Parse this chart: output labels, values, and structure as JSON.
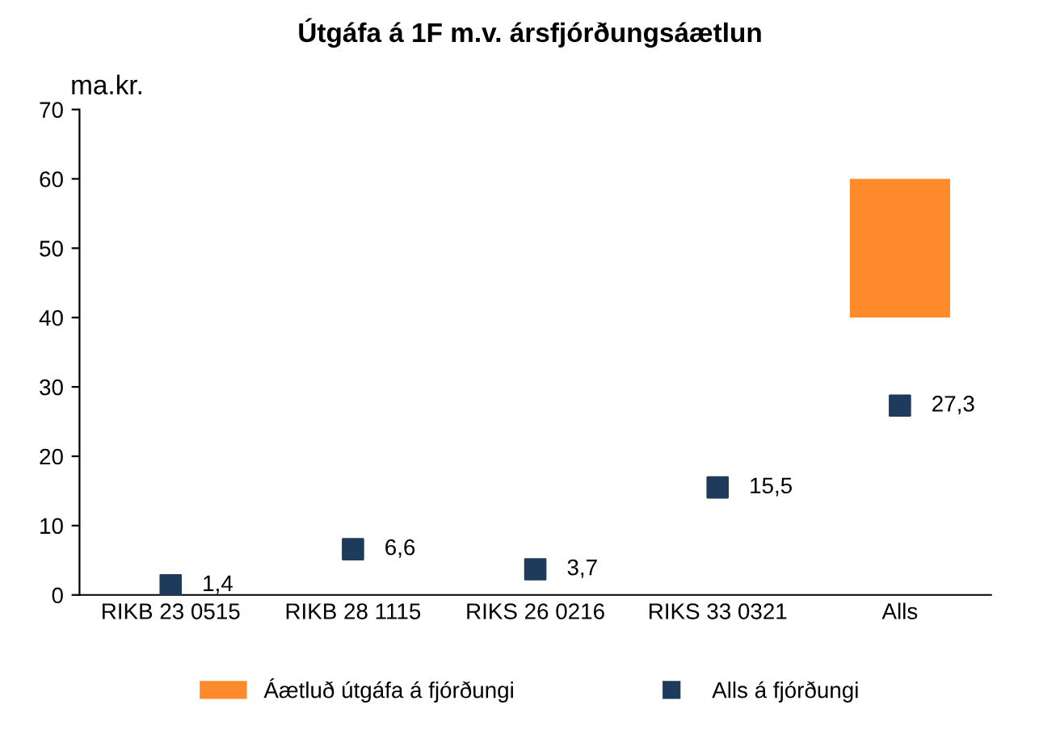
{
  "chart_data": {
    "type": "bar",
    "title": "Útgáfa á 1F m.v. ársfjórðungsáætlun",
    "ylabel": "ma.kr.",
    "categories": [
      "RIKB 23 0515",
      "RIKB 28 1115",
      "RIKS 26 0216",
      "RIKS 33 0321",
      "Alls"
    ],
    "series": [
      {
        "name": "Áætluð útgáfa á fjórðungi",
        "color": "#ff8a2b",
        "values": [
          null,
          null,
          null,
          null,
          20
        ],
        "base": [
          null,
          null,
          null,
          null,
          40
        ]
      },
      {
        "name": "Alls á fjórðungi",
        "type": "scatter",
        "marker": "square",
        "color": "#1f3b5c",
        "values": [
          1.4,
          6.6,
          3.7,
          15.5,
          27.3
        ],
        "value_labels": [
          "1,4",
          "6,6",
          "3,7",
          "15,5",
          "27,3"
        ]
      }
    ],
    "ylim": [
      0,
      70
    ],
    "yticks": [
      0,
      10,
      20,
      30,
      40,
      50,
      60,
      70
    ],
    "grid": false,
    "legend": "bottom"
  }
}
